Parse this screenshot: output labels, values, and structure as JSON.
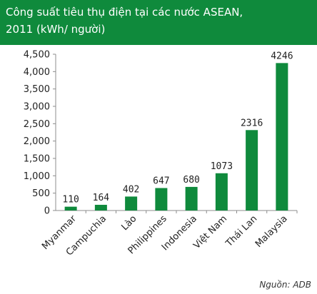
{
  "title_lines": [
    "Công suất tiêu thụ điện tại các nước ASEAN,",
    "2011 (kWh/ người)"
  ],
  "source": "Nguồn: ADB",
  "chart_data": {
    "type": "bar",
    "title": "Công suất tiêu thụ điện tại các nước ASEAN, 2011 (kWh/ người)",
    "categories": [
      "Myanmar",
      "Campuchia",
      "Lào",
      "Philippines",
      "Indonesia",
      "Việt Nam",
      "Thái Lan",
      "Malaysia"
    ],
    "values": [
      110,
      164,
      402,
      647,
      680,
      1073,
      2316,
      4246
    ],
    "yticks": [
      "0",
      "500",
      "1,000",
      "1,500",
      "2,000",
      "2,500",
      "3,000",
      "3,500",
      "4,000",
      "4,500"
    ],
    "ylim": [
      0,
      4500
    ],
    "grid": false,
    "legend": "none",
    "bar_color": "#0f8a3c"
  }
}
